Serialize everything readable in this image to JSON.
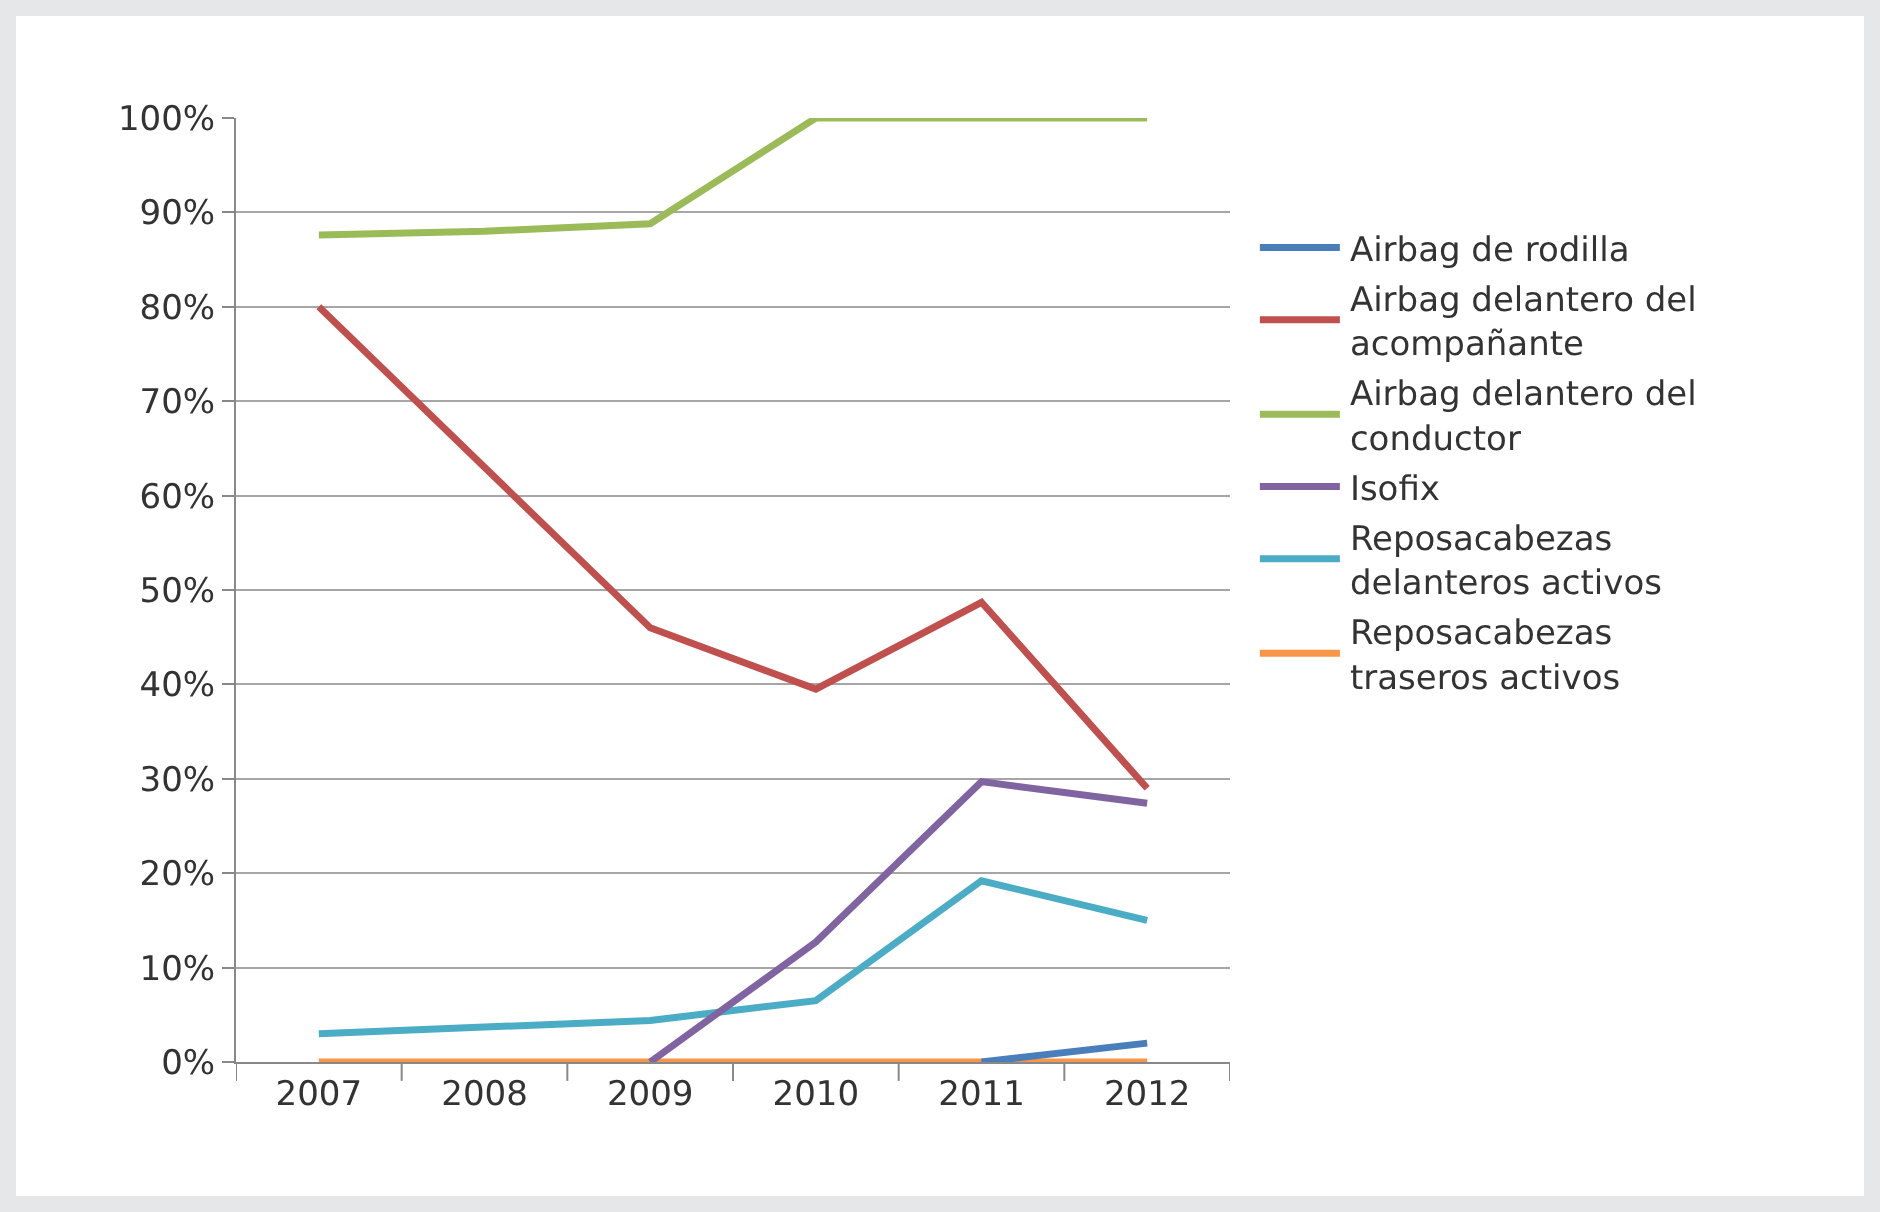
{
  "chart_data": {
    "type": "line",
    "categories": [
      "2007",
      "2008",
      "2009",
      "2010",
      "2011",
      "2012"
    ],
    "series": [
      {
        "name": "Airbag de rodilla",
        "color": "#4a7ebb",
        "values": [
          null,
          null,
          null,
          null,
          0,
          2
        ]
      },
      {
        "name": "Airbag delantero del acompañante",
        "color": "#c0504d",
        "values": [
          80,
          63,
          46,
          39.5,
          48.7,
          29
        ]
      },
      {
        "name": "Airbag delantero del conductor",
        "color": "#9bbb59",
        "values": [
          87.6,
          88,
          88.8,
          100,
          100,
          100
        ]
      },
      {
        "name": "Isofix",
        "color": "#8064a2",
        "values": [
          null,
          null,
          0,
          12.7,
          29.7,
          27.4
        ]
      },
      {
        "name": "Reposacabezas delanteros activos",
        "color": "#4bacc6",
        "values": [
          3,
          3.7,
          4.4,
          6.5,
          19.2,
          15
        ]
      },
      {
        "name": "Reposacabezas traseros activos",
        "color": "#f79646",
        "values": [
          0,
          0,
          0,
          0,
          0,
          0
        ]
      }
    ],
    "ylim": [
      0,
      100
    ],
    "yticks": [
      {
        "value": 0,
        "label": "0%"
      },
      {
        "value": 10,
        "label": "10%"
      },
      {
        "value": 20,
        "label": "20%"
      },
      {
        "value": 30,
        "label": "30%"
      },
      {
        "value": 40,
        "label": "40%"
      },
      {
        "value": 50,
        "label": "50%"
      },
      {
        "value": 60,
        "label": "60%"
      },
      {
        "value": 70,
        "label": "70%"
      },
      {
        "value": 80,
        "label": "80%"
      },
      {
        "value": 90,
        "label": "90%"
      },
      {
        "value": 100,
        "label": "100%"
      }
    ],
    "grid": "y",
    "legend": "right",
    "marker": "none",
    "line_style": "solid"
  }
}
